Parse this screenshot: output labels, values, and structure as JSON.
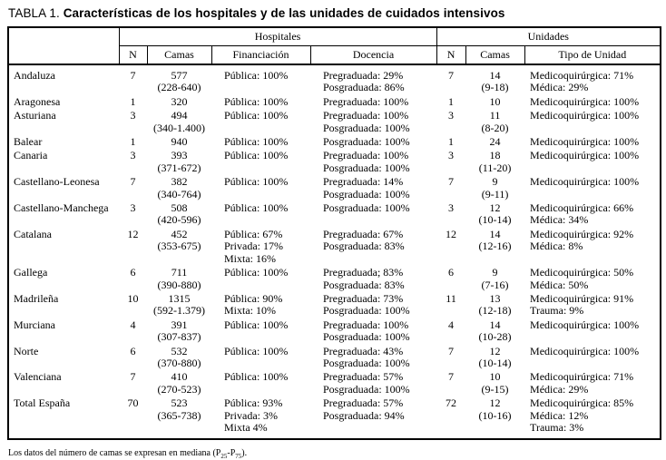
{
  "title": {
    "prefix": "TABLA 1.",
    "text": "Características de los hospitales y de las unidades de cuidados intensivos"
  },
  "table": {
    "group_headers": {
      "hospitales": "Hospitales",
      "unidades": "Unidades"
    },
    "columns": {
      "h_n": "N",
      "h_camas": "Camas",
      "h_fin": "Financiación",
      "h_doc": "Docencia",
      "u_n": "N",
      "u_camas": "Camas",
      "u_tipo": "Tipo de Unidad"
    },
    "rows": [
      {
        "name": "Andaluza",
        "h_n": "7",
        "h_camas": [
          "577",
          "(228-640)"
        ],
        "h_fin": [
          "Pública: 100%"
        ],
        "h_doc": [
          "Pregraduada: 29%",
          "Posgraduada: 86%"
        ],
        "u_n": "7",
        "u_camas": [
          "14",
          "(9-18)"
        ],
        "u_tipo": [
          "Medicoquirúrgica: 71%",
          "Médica: 29%"
        ]
      },
      {
        "name": "Aragonesa",
        "h_n": "1",
        "h_camas": [
          "320"
        ],
        "h_fin": [
          "Pública: 100%"
        ],
        "h_doc": [
          "Pregraduada: 100%"
        ],
        "u_n": "1",
        "u_camas": [
          "10"
        ],
        "u_tipo": [
          "Medicoquirúrgica: 100%"
        ]
      },
      {
        "name": "Asturiana",
        "h_n": "3",
        "h_camas": [
          "494",
          "(340-1.400)"
        ],
        "h_fin": [
          "Pública: 100%"
        ],
        "h_doc": [
          "Pregraduada: 100%",
          "Posgraduada: 100%"
        ],
        "u_n": "3",
        "u_camas": [
          "11",
          "(8-20)"
        ],
        "u_tipo": [
          "Medicoquirúrgica: 100%"
        ]
      },
      {
        "name": "Balear",
        "h_n": "1",
        "h_camas": [
          "940"
        ],
        "h_fin": [
          "Pública: 100%"
        ],
        "h_doc": [
          "Posgraduada: 100%"
        ],
        "u_n": "1",
        "u_camas": [
          "24"
        ],
        "u_tipo": [
          "Medicoquirúrgica: 100%"
        ]
      },
      {
        "name": "Canaria",
        "h_n": "3",
        "h_camas": [
          "393",
          "(371-672)"
        ],
        "h_fin": [
          "Pública: 100%"
        ],
        "h_doc": [
          "Pregraduada: 100%",
          "Posgraduada: 100%"
        ],
        "u_n": "3",
        "u_camas": [
          "18",
          "(11-20)"
        ],
        "u_tipo": [
          "Medicoquirúrgica: 100%"
        ]
      },
      {
        "name": "Castellano-Leonesa",
        "h_n": "7",
        "h_camas": [
          "382",
          "(340-764)"
        ],
        "h_fin": [
          "Pública: 100%"
        ],
        "h_doc": [
          "Pregraduada: 14%",
          "Posgraduada: 100%"
        ],
        "u_n": "7",
        "u_camas": [
          "9",
          "(9-11)"
        ],
        "u_tipo": [
          "Medicoquirúrgica: 100%"
        ]
      },
      {
        "name": "Castellano-Manchega",
        "h_n": "3",
        "h_camas": [
          "508",
          "(420-596)"
        ],
        "h_fin": [
          "Pública: 100%"
        ],
        "h_doc": [
          "Posgraduada: 100%"
        ],
        "u_n": "3",
        "u_camas": [
          "12",
          "(10-14)"
        ],
        "u_tipo": [
          "Medicoquirúrgica: 66%",
          "Médica: 34%"
        ]
      },
      {
        "name": "Catalana",
        "h_n": "12",
        "h_camas": [
          "452",
          "(353-675)"
        ],
        "h_fin": [
          "Pública: 67%",
          "Privada: 17%",
          "Mixta: 16%"
        ],
        "h_doc": [
          "Pregraduada: 67%",
          "Posgraduada: 83%"
        ],
        "u_n": "12",
        "u_camas": [
          "14",
          "(12-16)"
        ],
        "u_tipo": [
          "Medicoquirúrgica: 92%",
          "Médica: 8%"
        ]
      },
      {
        "name": "Gallega",
        "h_n": "6",
        "h_camas": [
          "711",
          "(390-880)"
        ],
        "h_fin": [
          "Pública: 100%"
        ],
        "h_doc": [
          "Pregraduada; 83%",
          "Posgraduada: 83%"
        ],
        "u_n": "6",
        "u_camas": [
          "9",
          "(7-16)"
        ],
        "u_tipo": [
          "Medicoquirúrgica: 50%",
          "Médica: 50%"
        ]
      },
      {
        "name": "Madrileña",
        "h_n": "10",
        "h_camas": [
          "1315",
          "(592-1.379)"
        ],
        "h_fin": [
          "Pública: 90%",
          "Mixta: 10%"
        ],
        "h_doc": [
          "Pregraduada: 73%",
          "Posgraduada: 100%"
        ],
        "u_n": "11",
        "u_camas": [
          "13",
          "(12-18)"
        ],
        "u_tipo": [
          "Medicoquirúrgica: 91%",
          "Trauma: 9%"
        ]
      },
      {
        "name": "Murciana",
        "h_n": "4",
        "h_camas": [
          "391",
          "(307-837)"
        ],
        "h_fin": [
          "Pública: 100%"
        ],
        "h_doc": [
          "Pregraduada: 100%",
          "Posgraduada: 100%"
        ],
        "u_n": "4",
        "u_camas": [
          "14",
          "(10-28)"
        ],
        "u_tipo": [
          "Medicoquirúrgica: 100%"
        ]
      },
      {
        "name": "Norte",
        "h_n": "6",
        "h_camas": [
          "532",
          "(370-880)"
        ],
        "h_fin": [
          "Pública: 100%"
        ],
        "h_doc": [
          "Pregraduada: 43%",
          "Posgraduada: 100%"
        ],
        "u_n": "7",
        "u_camas": [
          "12",
          "(10-14)"
        ],
        "u_tipo": [
          "Medicoquirúrgica: 100%"
        ]
      },
      {
        "name": "Valenciana",
        "h_n": "7",
        "h_camas": [
          "410",
          "(270-523)"
        ],
        "h_fin": [
          "Pública: 100%"
        ],
        "h_doc": [
          "Pregraduada: 57%",
          "Posgraduada: 100%"
        ],
        "u_n": "7",
        "u_camas": [
          "10",
          "(9-15)"
        ],
        "u_tipo": [
          "Medicoquirúrgica: 71%",
          "Médica: 29%"
        ]
      },
      {
        "name": "Total España",
        "h_n": "70",
        "h_camas": [
          "523",
          "(365-738)"
        ],
        "h_fin": [
          "Pública: 93%",
          "Privada: 3%",
          "Mixta 4%"
        ],
        "h_doc": [
          "Pregraduada: 57%",
          "Posgraduada: 94%"
        ],
        "u_n": "72",
        "u_camas": [
          "12",
          "(10-16)"
        ],
        "u_tipo": [
          "Medicoquirúrgica: 85%",
          "Médica: 12%",
          "Trauma: 3%"
        ]
      }
    ]
  },
  "footnote": {
    "pre": "Los datos del número de camas se expresan en mediana (P",
    "sub1": "25",
    "mid": "-P",
    "sub2": "75",
    "post": ")."
  }
}
